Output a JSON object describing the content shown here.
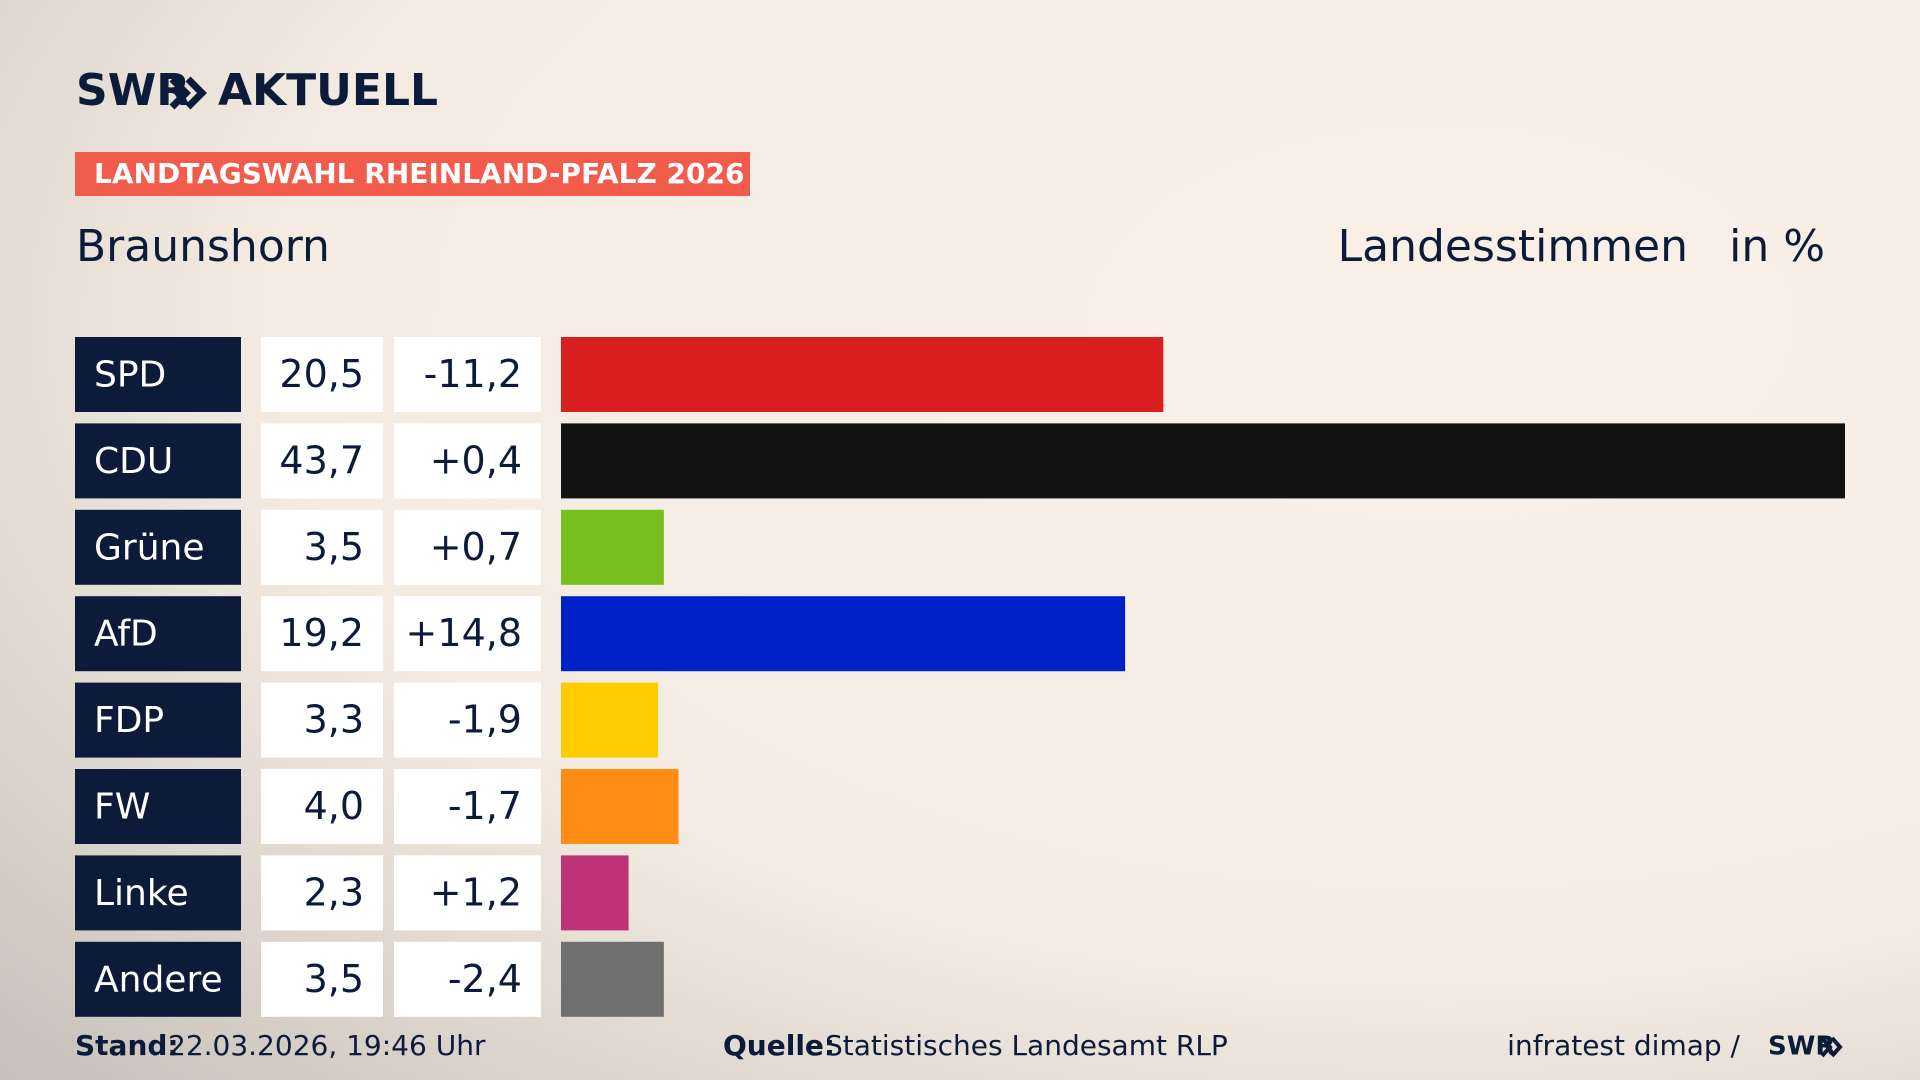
{
  "header": {
    "brand": "SWR",
    "product": "AKTUELL",
    "banner": "LANDTAGSWAHL RHEINLAND-PFALZ 2026"
  },
  "chart_data": {
    "type": "bar",
    "title": "Braunshorn",
    "subtitle": "Landesstimmen",
    "unit": "in %",
    "categories": [
      "SPD",
      "CDU",
      "Grüne",
      "AfD",
      "FDP",
      "FW",
      "Linke",
      "Andere"
    ],
    "values": [
      20.5,
      43.7,
      3.5,
      19.2,
      3.3,
      4.0,
      2.3,
      3.5
    ],
    "value_labels": [
      "20,5",
      "43,7",
      "3,5",
      "19,2",
      "3,3",
      "4,0",
      "2,3",
      "3,5"
    ],
    "change_labels": [
      "-11,2",
      "+0,4",
      "+0,7",
      "+14,8",
      "-1,9",
      "-1,7",
      "+1,2",
      "-2,4"
    ],
    "colors": [
      "#d81e1e",
      "#111111",
      "#78be1e",
      "#0020c8",
      "#ffcc00",
      "#ff8c14",
      "#be3278",
      "#707070"
    ]
  },
  "footer": {
    "stand_label": "Stand:",
    "stand": "22.03.2026, 19:46 Uhr",
    "source_label": "Quelle:",
    "source": "Statistisches Landesamt RLP",
    "credit": "infratest dimap /",
    "credit_brand": "SWR"
  }
}
